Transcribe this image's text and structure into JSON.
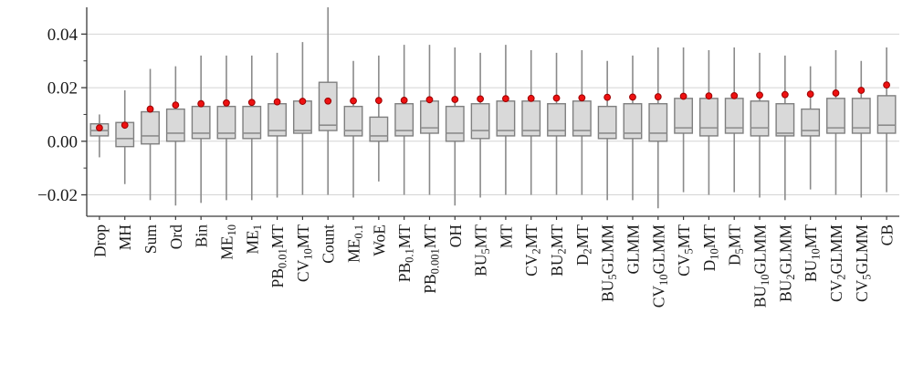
{
  "figure": {
    "background": "#ffffff"
  },
  "chart_data": {
    "type": "boxplot",
    "title": "",
    "xlabel": "",
    "ylabel": "",
    "legend": "none",
    "grid": "horizontal-major",
    "mean_marker": "red-dot",
    "ylim": [
      -0.028,
      0.05
    ],
    "yticks_major": [
      -0.02,
      0.0,
      0.02,
      0.04
    ],
    "ytick_labels": [
      "−0.02",
      "0.00",
      "0.02",
      "0.04"
    ],
    "yticks_minor": [
      -0.01,
      0.01,
      0.03
    ],
    "categories": [
      "Drop",
      "MH",
      "Sum",
      "Ord",
      "Bin",
      "ME_{10}",
      "ME_{1}",
      "PB_{0.01}MT",
      "CV_{10}MT",
      "Count",
      "ME_{0.1}",
      "WoE",
      "PB_{0.1}MT",
      "PB_{0.001}MT",
      "OH",
      "BU_{5}MT",
      "MT",
      "CV_{2}MT",
      "BU_{2}MT",
      "D_{2}MT",
      "BU_{5}GLMM",
      "GLMM",
      "CV_{10}GLMM",
      "CV_{5}MT",
      "D_{10}MT",
      "D_{5}MT",
      "BU_{10}GLMM",
      "BU_{2}GLMM",
      "BU_{10}MT",
      "CV_{2}GLMM",
      "CV_{5}GLMM",
      "CB"
    ],
    "boxes": [
      {
        "lo": -0.006,
        "q1": 0.002,
        "med": 0.004,
        "q3": 0.0065,
        "hi": 0.01,
        "mean": 0.005
      },
      {
        "lo": -0.016,
        "q1": -0.002,
        "med": 0.001,
        "q3": 0.007,
        "hi": 0.019,
        "mean": 0.006
      },
      {
        "lo": -0.022,
        "q1": -0.001,
        "med": 0.002,
        "q3": 0.011,
        "hi": 0.027,
        "mean": 0.012
      },
      {
        "lo": -0.024,
        "q1": 0.0,
        "med": 0.003,
        "q3": 0.012,
        "hi": 0.028,
        "mean": 0.0135
      },
      {
        "lo": -0.023,
        "q1": 0.001,
        "med": 0.003,
        "q3": 0.013,
        "hi": 0.032,
        "mean": 0.014
      },
      {
        "lo": -0.022,
        "q1": 0.001,
        "med": 0.003,
        "q3": 0.013,
        "hi": 0.032,
        "mean": 0.0143
      },
      {
        "lo": -0.022,
        "q1": 0.001,
        "med": 0.003,
        "q3": 0.013,
        "hi": 0.032,
        "mean": 0.0145
      },
      {
        "lo": -0.021,
        "q1": 0.002,
        "med": 0.004,
        "q3": 0.014,
        "hi": 0.033,
        "mean": 0.0147
      },
      {
        "lo": -0.02,
        "q1": 0.003,
        "med": 0.004,
        "q3": 0.015,
        "hi": 0.037,
        "mean": 0.0149
      },
      {
        "lo": -0.02,
        "q1": 0.004,
        "med": 0.006,
        "q3": 0.022,
        "hi": 0.05,
        "mean": 0.015
      },
      {
        "lo": -0.021,
        "q1": 0.002,
        "med": 0.004,
        "q3": 0.013,
        "hi": 0.03,
        "mean": 0.0151
      },
      {
        "lo": -0.015,
        "q1": 0.0,
        "med": 0.002,
        "q3": 0.009,
        "hi": 0.032,
        "mean": 0.0152
      },
      {
        "lo": -0.02,
        "q1": 0.002,
        "med": 0.004,
        "q3": 0.014,
        "hi": 0.036,
        "mean": 0.0153
      },
      {
        "lo": -0.02,
        "q1": 0.003,
        "med": 0.005,
        "q3": 0.015,
        "hi": 0.036,
        "mean": 0.0155
      },
      {
        "lo": -0.024,
        "q1": 0.0,
        "med": 0.003,
        "q3": 0.013,
        "hi": 0.035,
        "mean": 0.0156
      },
      {
        "lo": -0.021,
        "q1": 0.001,
        "med": 0.004,
        "q3": 0.014,
        "hi": 0.033,
        "mean": 0.0158
      },
      {
        "lo": -0.02,
        "q1": 0.002,
        "med": 0.004,
        "q3": 0.015,
        "hi": 0.036,
        "mean": 0.0159
      },
      {
        "lo": -0.02,
        "q1": 0.002,
        "med": 0.004,
        "q3": 0.015,
        "hi": 0.034,
        "mean": 0.016
      },
      {
        "lo": -0.02,
        "q1": 0.002,
        "med": 0.004,
        "q3": 0.014,
        "hi": 0.033,
        "mean": 0.0161
      },
      {
        "lo": -0.02,
        "q1": 0.002,
        "med": 0.004,
        "q3": 0.015,
        "hi": 0.034,
        "mean": 0.0162
      },
      {
        "lo": -0.022,
        "q1": 0.001,
        "med": 0.003,
        "q3": 0.013,
        "hi": 0.03,
        "mean": 0.0164
      },
      {
        "lo": -0.022,
        "q1": 0.001,
        "med": 0.003,
        "q3": 0.014,
        "hi": 0.032,
        "mean": 0.0165
      },
      {
        "lo": -0.025,
        "q1": 0.0,
        "med": 0.003,
        "q3": 0.014,
        "hi": 0.035,
        "mean": 0.0166
      },
      {
        "lo": -0.019,
        "q1": 0.003,
        "med": 0.005,
        "q3": 0.016,
        "hi": 0.035,
        "mean": 0.0168
      },
      {
        "lo": -0.02,
        "q1": 0.002,
        "med": 0.005,
        "q3": 0.016,
        "hi": 0.034,
        "mean": 0.0169
      },
      {
        "lo": -0.019,
        "q1": 0.003,
        "med": 0.005,
        "q3": 0.016,
        "hi": 0.035,
        "mean": 0.017
      },
      {
        "lo": -0.021,
        "q1": 0.002,
        "med": 0.005,
        "q3": 0.015,
        "hi": 0.033,
        "mean": 0.0172
      },
      {
        "lo": -0.022,
        "q1": 0.002,
        "med": 0.003,
        "q3": 0.014,
        "hi": 0.032,
        "mean": 0.0174
      },
      {
        "lo": -0.018,
        "q1": 0.002,
        "med": 0.004,
        "q3": 0.012,
        "hi": 0.028,
        "mean": 0.0176
      },
      {
        "lo": -0.02,
        "q1": 0.003,
        "med": 0.005,
        "q3": 0.016,
        "hi": 0.034,
        "mean": 0.018
      },
      {
        "lo": -0.021,
        "q1": 0.003,
        "med": 0.005,
        "q3": 0.016,
        "hi": 0.03,
        "mean": 0.019
      },
      {
        "lo": -0.019,
        "q1": 0.003,
        "med": 0.006,
        "q3": 0.017,
        "hi": 0.035,
        "mean": 0.021
      }
    ],
    "colors": {
      "box_fill": "#d9d9d9",
      "box_edge": "#7f7f7f",
      "median": "#8c8c8c",
      "whisker": "#8a8a8a",
      "mean_fill": "#ee1111",
      "mean_edge": "#9b0000",
      "grid": "#d4d4d4",
      "axis": "#3a3a3a",
      "text": "#1a1a1a"
    }
  }
}
